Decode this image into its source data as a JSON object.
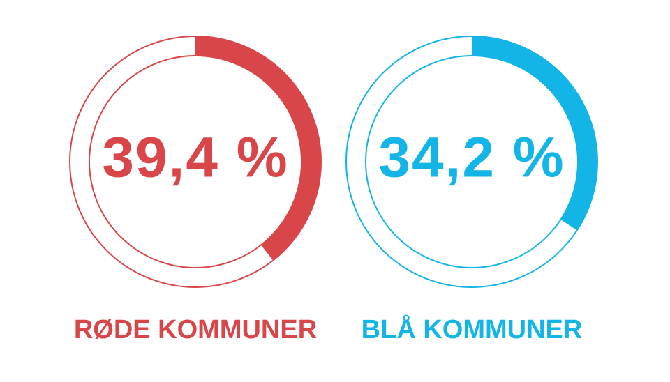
{
  "chart_data": [
    {
      "type": "gauge",
      "title": "RØDE KOMMUNER",
      "values": [
        39.4
      ],
      "value_labels": [
        "39,4 %"
      ],
      "ylim": [
        0,
        100
      ],
      "color": "#d9464a"
    },
    {
      "type": "gauge",
      "title": "BLÅ KOMMUNER",
      "values": [
        34.2
      ],
      "value_labels": [
        "34,2 %"
      ],
      "ylim": [
        0,
        100
      ],
      "color": "#12b5e5"
    }
  ]
}
